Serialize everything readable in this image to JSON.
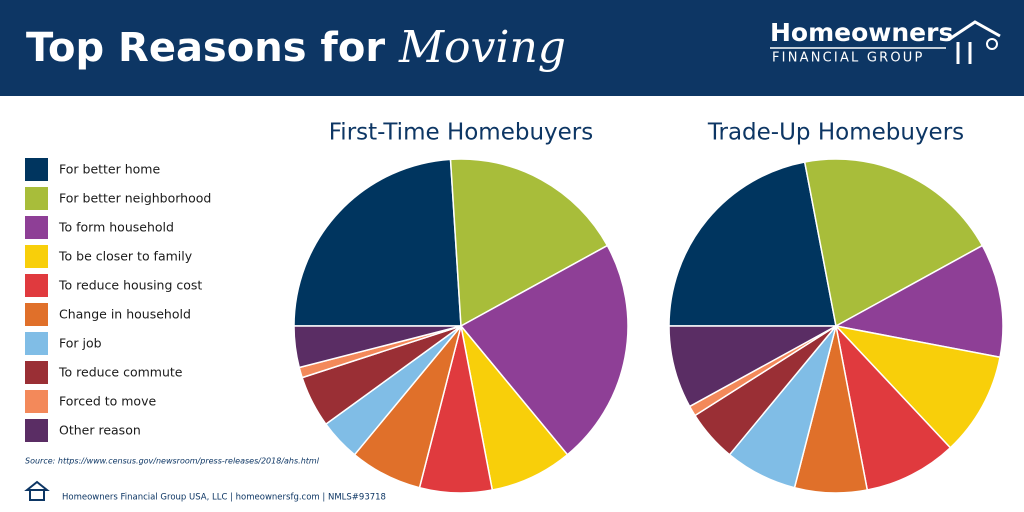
{
  "header": {
    "title": "Top Reasons for",
    "title_emphasis": "Moving",
    "logo_name": "Homeowners",
    "logo_sub": "FINANCIAL GROUP"
  },
  "legend": {
    "categories": [
      "For better home",
      "For better neighborhood",
      "To form household",
      "To be closer to family",
      "To reduce housing cost",
      "Change in household",
      "For job",
      "To reduce commute",
      "Forced to move",
      "Other reason"
    ],
    "colors": [
      "#00355f",
      "#a8bd3a",
      "#8e3f96",
      "#f8cf0a",
      "#e03a3e",
      "#e0702a",
      "#80bde6",
      "#9a2f35",
      "#f3895a",
      "#5a2d64"
    ]
  },
  "chart_data": [
    {
      "type": "pie",
      "title": "First-Time Homebuyers",
      "values": [
        24,
        18,
        22,
        8,
        7,
        7,
        4,
        5,
        1,
        4
      ]
    },
    {
      "type": "pie",
      "title": "Trade-Up Homebuyers",
      "values": [
        22,
        20,
        11,
        10,
        9,
        7,
        7,
        5,
        1,
        8
      ]
    }
  ],
  "source": "Source: https://www.census.gov/newsroom/press-releases/2018/ahs.html",
  "footer": "Homeowners Financial Group USA, LLC | homeownersfg.com | NMLS#93718"
}
